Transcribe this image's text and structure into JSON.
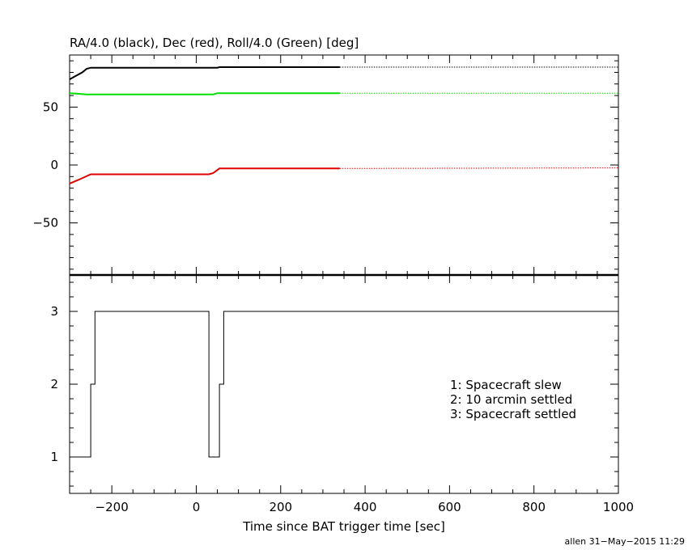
{
  "chart_data": [
    {
      "type": "line",
      "title": "RA/4.0 (black), Dec (red), Roll/4.0 (Green) [deg]",
      "xlim": [
        -300,
        1000
      ],
      "ylim": [
        -95,
        95
      ],
      "y_ticks": [
        -50,
        0,
        50
      ],
      "y_tick_labels": [
        "−50",
        "0",
        "50"
      ],
      "grid": false,
      "series": [
        {
          "color": "#000000",
          "solid_points": [
            [
              -300,
              74
            ],
            [
              -285,
              77
            ],
            [
              -270,
              80
            ],
            [
              -260,
              83
            ],
            [
              -250,
              84
            ],
            [
              50,
              84
            ],
            [
              55,
              84.5
            ],
            [
              340,
              84.5
            ]
          ],
          "dotted_points": [
            [
              340,
              84.5
            ],
            [
              1000,
              84.5
            ]
          ]
        },
        {
          "color": "#00e000",
          "solid_points": [
            [
              -300,
              62
            ],
            [
              -285,
              61.6
            ],
            [
              -260,
              61
            ],
            [
              -250,
              61
            ],
            [
              40,
              61
            ],
            [
              50,
              62
            ],
            [
              340,
              62
            ]
          ],
          "dotted_points": [
            [
              340,
              62
            ],
            [
              1000,
              62
            ]
          ]
        },
        {
          "color": "#e00000",
          "solid_points": [
            [
              -300,
              -16
            ],
            [
              -280,
              -13
            ],
            [
              -250,
              -8
            ],
            [
              30,
              -8
            ],
            [
              40,
              -7
            ],
            [
              55,
              -3
            ],
            [
              340,
              -3
            ]
          ],
          "dotted_points": [
            [
              340,
              -3
            ],
            [
              1000,
              -2.5
            ]
          ]
        }
      ]
    },
    {
      "type": "line",
      "style": "step",
      "xlabel": "Time since BAT trigger time [sec]",
      "xlim": [
        -300,
        1000
      ],
      "ylim": [
        0.5,
        3.5
      ],
      "x_ticks": [
        -200,
        0,
        200,
        400,
        600,
        800,
        1000
      ],
      "x_tick_labels": [
        "−200",
        "0",
        "200",
        "400",
        "600",
        "800",
        "1000"
      ],
      "y_ticks": [
        1,
        2,
        3
      ],
      "y_tick_labels": [
        "1",
        "2",
        "3"
      ],
      "grid": false,
      "series": [
        {
          "color": "#000000",
          "points": [
            [
              -300,
              1
            ],
            [
              -250,
              1
            ],
            [
              -250,
              2
            ],
            [
              -240,
              2
            ],
            [
              -240,
              3
            ],
            [
              30,
              3
            ],
            [
              30,
              1
            ],
            [
              55,
              1
            ],
            [
              55,
              2
            ],
            [
              65,
              2
            ],
            [
              65,
              3
            ],
            [
              1000,
              3
            ]
          ]
        }
      ],
      "annotations": [
        "1: Spacecraft slew",
        "2: 10 arcmin settled",
        "3: Spacecraft settled"
      ]
    }
  ],
  "footer": "allen 31−May−2015 11:29"
}
